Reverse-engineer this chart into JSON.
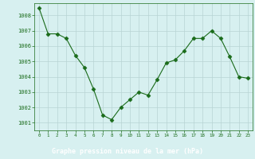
{
  "x": [
    0,
    1,
    2,
    3,
    4,
    5,
    6,
    7,
    8,
    9,
    10,
    11,
    12,
    13,
    14,
    15,
    16,
    17,
    18,
    19,
    20,
    21,
    22,
    23
  ],
  "y": [
    1008.5,
    1006.8,
    1006.8,
    1006.5,
    1005.4,
    1004.6,
    1003.2,
    1001.5,
    1001.2,
    1002.0,
    1002.5,
    1003.0,
    1002.8,
    1003.8,
    1004.9,
    1005.1,
    1005.7,
    1006.5,
    1006.5,
    1007.0,
    1006.5,
    1005.3,
    1004.0,
    1003.9
  ],
  "line_color": "#1a6b1a",
  "marker": "D",
  "marker_size": 2.5,
  "bg_color": "#d7f0f0",
  "grid_color": "#b8d4d4",
  "xlabel": "Graphe pression niveau de la mer (hPa)",
  "xlabel_color": "#ffffff",
  "xlabel_bg": "#2a6b2a",
  "tick_color": "#1a6b1a",
  "label_fontsize": 5.5,
  "ylim": [
    1000.5,
    1008.8
  ],
  "yticks": [
    1001,
    1002,
    1003,
    1004,
    1005,
    1006,
    1007,
    1008
  ],
  "xlim": [
    -0.5,
    23.5
  ],
  "xticks": [
    0,
    1,
    2,
    3,
    4,
    5,
    6,
    7,
    8,
    9,
    10,
    11,
    12,
    13,
    14,
    15,
    16,
    17,
    18,
    19,
    20,
    21,
    22,
    23
  ]
}
